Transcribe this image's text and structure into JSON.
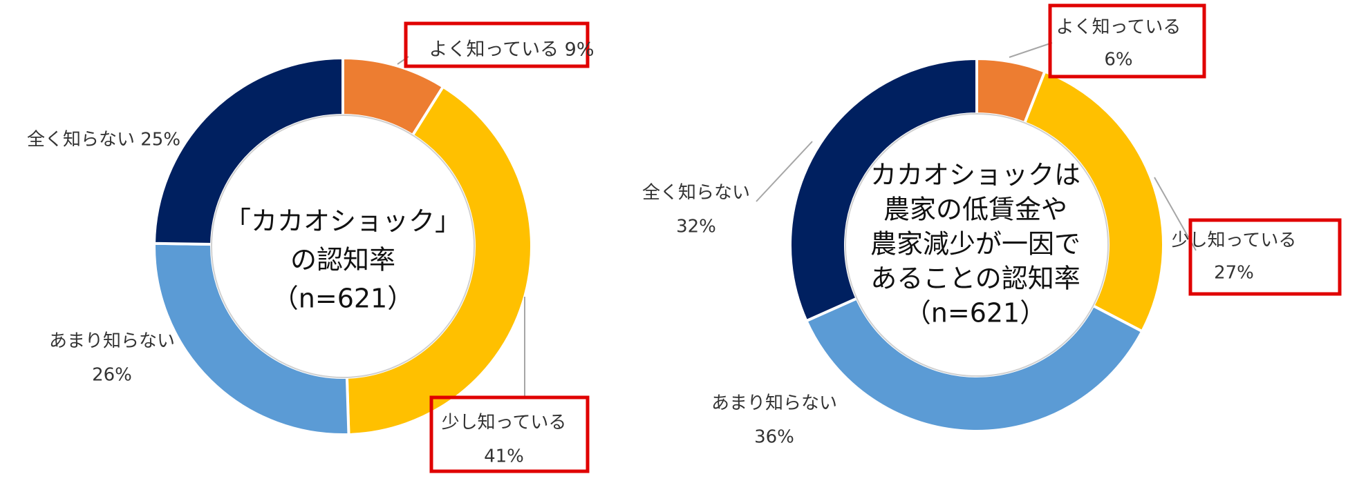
{
  "colors": {
    "よく知っている": "#ED7D31",
    "少し知っている": "#FFC000",
    "あまり知らない": "#5B9BD5",
    "全く知らない": "#002060",
    "highlight_box": "#E00000",
    "leader": "#A6A6A6",
    "label_text": "#333333",
    "center_text": "#111111"
  },
  "chart_data": [
    {
      "type": "pie",
      "style": "donut",
      "title": "「カカオショック」の認知率（n=621）",
      "center_lines": [
        "「カカオショック」",
        "の認知率",
        "（n=621）"
      ],
      "categories": [
        "よく知っている",
        "少し知っている",
        "あまり知らない",
        "全く知らない"
      ],
      "values": [
        9,
        41,
        26,
        25
      ],
      "unit": "%",
      "data_labels": [
        [
          "よく知っている 9%"
        ],
        [
          "少し知っている",
          "41%"
        ],
        [
          "あまり知らない",
          "26%"
        ],
        [
          "全く知らない 25%"
        ]
      ],
      "highlighted": [
        "よく知っている",
        "少し知っている"
      ],
      "legend": "none"
    },
    {
      "type": "pie",
      "style": "donut",
      "title": "カカオショックは農家の低賃金や農家減少が一因であることの認知率（n=621）",
      "center_lines": [
        "カカオショックは",
        "農家の低賃金や",
        "農家減少が一因で",
        "あることの認知率",
        "（n=621）"
      ],
      "categories": [
        "よく知っている",
        "少し知っている",
        "あまり知らない",
        "全く知らない"
      ],
      "values": [
        6,
        27,
        36,
        32
      ],
      "unit": "%",
      "data_labels": [
        [
          "よく知っている",
          "6%"
        ],
        [
          "少し知っている",
          "27%"
        ],
        [
          "あまり知らない",
          "36%"
        ],
        [
          "全く知らない",
          "32%"
        ]
      ],
      "highlighted": [
        "よく知っている",
        "少し知っている"
      ],
      "legend": "none"
    }
  ]
}
